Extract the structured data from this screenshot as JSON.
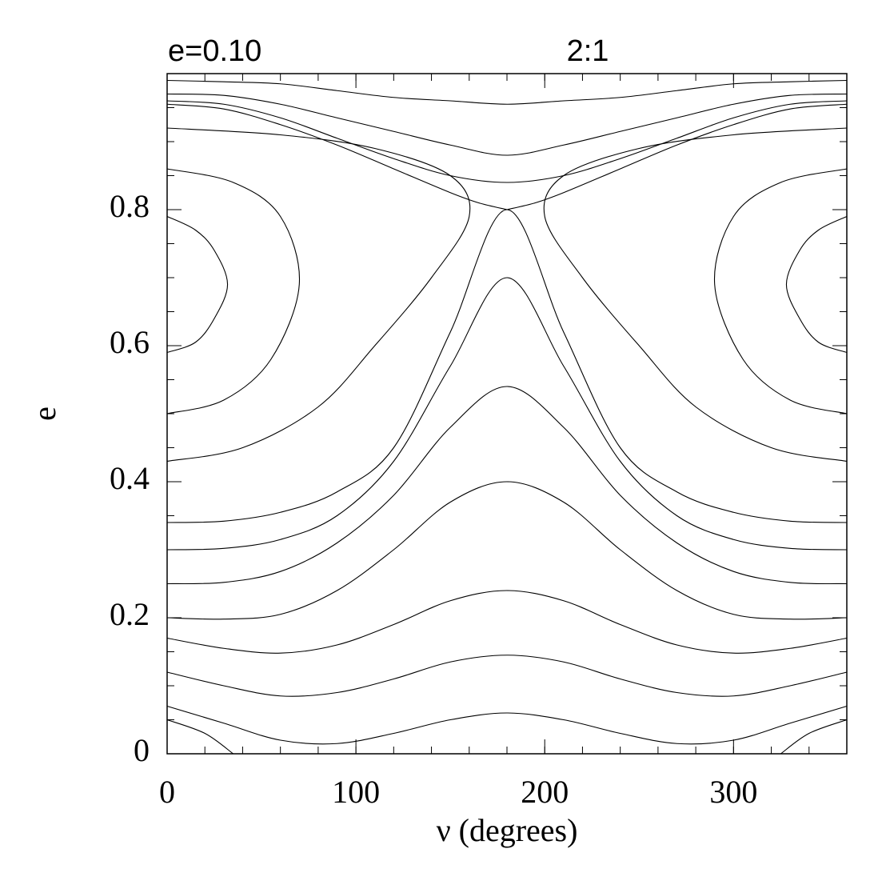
{
  "chart_data": {
    "type": "line",
    "title": "2:1",
    "subtitle": "e=0.10",
    "xlabel": "ν (degrees)",
    "ylabel": "e",
    "xlim": [
      0,
      360
    ],
    "ylim": [
      0,
      1
    ],
    "xticks": [
      0,
      100,
      200,
      300
    ],
    "yticks": [
      0,
      0.2,
      0.4,
      0.6,
      0.8
    ],
    "xminorticks": [
      0,
      20,
      40,
      60,
      80,
      100,
      120,
      140,
      160,
      180,
      200,
      220,
      240,
      260,
      280,
      300,
      320,
      340,
      360
    ],
    "yminorticks": [
      0,
      0.05,
      0.1,
      0.15,
      0.2,
      0.25,
      0.3,
      0.35,
      0.4,
      0.45,
      0.5,
      0.55,
      0.6,
      0.65,
      0.7,
      0.75,
      0.8,
      0.85,
      0.9,
      0.95,
      1
    ],
    "series": [
      {
        "color": "#000000",
        "x": [
          0,
          30,
          60,
          90,
          120,
          150,
          180,
          210,
          240,
          270,
          300,
          330,
          360
        ],
        "values": [
          0.99,
          0.988,
          0.985,
          0.975,
          0.965,
          0.96,
          0.955,
          0.96,
          0.965,
          0.975,
          0.985,
          0.988,
          0.99
        ]
      },
      {
        "color": "#000000",
        "x": [
          0,
          30,
          60,
          90,
          120,
          150,
          180,
          210,
          240,
          270,
          300,
          330,
          360
        ],
        "values": [
          0.97,
          0.968,
          0.955,
          0.935,
          0.915,
          0.895,
          0.88,
          0.895,
          0.915,
          0.935,
          0.955,
          0.968,
          0.97
        ]
      },
      {
        "color": "#000000",
        "x": [
          0,
          30,
          60,
          90,
          120,
          150,
          180,
          210,
          240,
          270,
          300,
          330,
          360
        ],
        "values": [
          0.96,
          0.955,
          0.935,
          0.905,
          0.875,
          0.85,
          0.84,
          0.85,
          0.875,
          0.905,
          0.935,
          0.955,
          0.96
        ]
      },
      {
        "color": "#000000",
        "x": [
          0,
          30,
          60,
          90,
          120,
          150,
          165,
          180
        ],
        "values": [
          0.955,
          0.948,
          0.925,
          0.895,
          0.86,
          0.825,
          0.81,
          0.8
        ]
      },
      {
        "color": "#000000",
        "x": [
          180,
          195,
          210,
          240,
          270,
          300,
          330,
          360
        ],
        "values": [
          0.8,
          0.81,
          0.825,
          0.86,
          0.895,
          0.925,
          0.948,
          0.955
        ]
      },
      {
        "color": "#000000",
        "x": [
          0,
          30,
          60,
          90,
          120,
          150,
          180,
          210,
          240,
          270,
          300,
          330,
          360
        ],
        "values": [
          0.34,
          0.342,
          0.355,
          0.385,
          0.45,
          0.62,
          0.8,
          0.62,
          0.45,
          0.385,
          0.355,
          0.342,
          0.34
        ]
      },
      {
        "color": "#000000",
        "x": [
          0,
          30,
          60,
          90,
          120,
          150,
          180,
          210,
          240,
          270,
          300,
          330,
          360
        ],
        "values": [
          0.3,
          0.302,
          0.315,
          0.35,
          0.43,
          0.57,
          0.7,
          0.57,
          0.43,
          0.35,
          0.315,
          0.302,
          0.3
        ]
      },
      {
        "color": "#000000",
        "x": [
          0,
          30,
          60,
          90,
          120,
          150,
          180,
          210,
          240,
          270,
          300,
          330,
          360
        ],
        "values": [
          0.25,
          0.252,
          0.268,
          0.31,
          0.38,
          0.48,
          0.54,
          0.48,
          0.38,
          0.31,
          0.268,
          0.252,
          0.25
        ]
      },
      {
        "color": "#000000",
        "x": [
          0,
          30,
          60,
          90,
          120,
          150,
          180,
          210,
          240,
          270,
          300,
          330,
          360
        ],
        "values": [
          0.2,
          0.198,
          0.205,
          0.24,
          0.3,
          0.37,
          0.4,
          0.37,
          0.3,
          0.24,
          0.205,
          0.198,
          0.2
        ]
      },
      {
        "color": "#000000",
        "x": [
          0,
          30,
          60,
          90,
          120,
          150,
          180,
          210,
          240,
          270,
          300,
          330,
          360
        ],
        "values": [
          0.17,
          0.155,
          0.148,
          0.16,
          0.19,
          0.225,
          0.24,
          0.225,
          0.19,
          0.16,
          0.148,
          0.155,
          0.17
        ]
      },
      {
        "color": "#000000",
        "x": [
          0,
          30,
          60,
          90,
          120,
          150,
          180,
          210,
          240,
          270,
          300,
          330,
          360
        ],
        "values": [
          0.12,
          0.1,
          0.085,
          0.09,
          0.11,
          0.135,
          0.145,
          0.135,
          0.11,
          0.09,
          0.085,
          0.1,
          0.12
        ]
      },
      {
        "color": "#000000",
        "x": [
          0,
          30,
          60,
          90,
          120,
          150,
          180,
          210,
          240,
          270,
          300,
          330,
          360
        ],
        "values": [
          0.07,
          0.045,
          0.02,
          0.015,
          0.03,
          0.05,
          0.06,
          0.05,
          0.03,
          0.015,
          0.02,
          0.045,
          0.07
        ]
      },
      {
        "color": "#000000",
        "x": [
          0,
          15,
          25,
          32,
          25,
          15,
          0
        ],
        "values": [
          0.59,
          0.605,
          0.64,
          0.69,
          0.74,
          0.77,
          0.79
        ]
      },
      {
        "color": "#000000",
        "x": [
          0,
          30,
          55,
          70,
          60,
          35,
          0
        ],
        "values": [
          0.5,
          0.52,
          0.58,
          0.69,
          0.79,
          0.84,
          0.86
        ]
      },
      {
        "color": "#000000",
        "x": [
          0,
          40,
          80,
          110,
          140,
          160,
          150,
          110,
          60,
          0
        ],
        "values": [
          0.43,
          0.45,
          0.51,
          0.6,
          0.7,
          0.79,
          0.85,
          0.89,
          0.91,
          0.92
        ]
      },
      {
        "color": "#000000",
        "x": [
          360,
          345,
          335,
          328,
          335,
          345,
          360
        ],
        "values": [
          0.59,
          0.605,
          0.64,
          0.69,
          0.74,
          0.77,
          0.79
        ]
      },
      {
        "color": "#000000",
        "x": [
          360,
          330,
          305,
          290,
          300,
          325,
          360
        ],
        "values": [
          0.5,
          0.52,
          0.58,
          0.69,
          0.79,
          0.84,
          0.86
        ]
      },
      {
        "color": "#000000",
        "x": [
          360,
          320,
          280,
          250,
          220,
          200,
          210,
          250,
          300,
          360
        ],
        "values": [
          0.43,
          0.45,
          0.51,
          0.6,
          0.7,
          0.79,
          0.85,
          0.89,
          0.91,
          0.92
        ]
      },
      {
        "color": "#000000",
        "x": [
          0,
          20,
          35
        ],
        "values": [
          0.05,
          0.03,
          0
        ]
      },
      {
        "color": "#000000",
        "x": [
          360,
          340,
          325
        ],
        "values": [
          0.05,
          0.03,
          0
        ]
      }
    ]
  }
}
